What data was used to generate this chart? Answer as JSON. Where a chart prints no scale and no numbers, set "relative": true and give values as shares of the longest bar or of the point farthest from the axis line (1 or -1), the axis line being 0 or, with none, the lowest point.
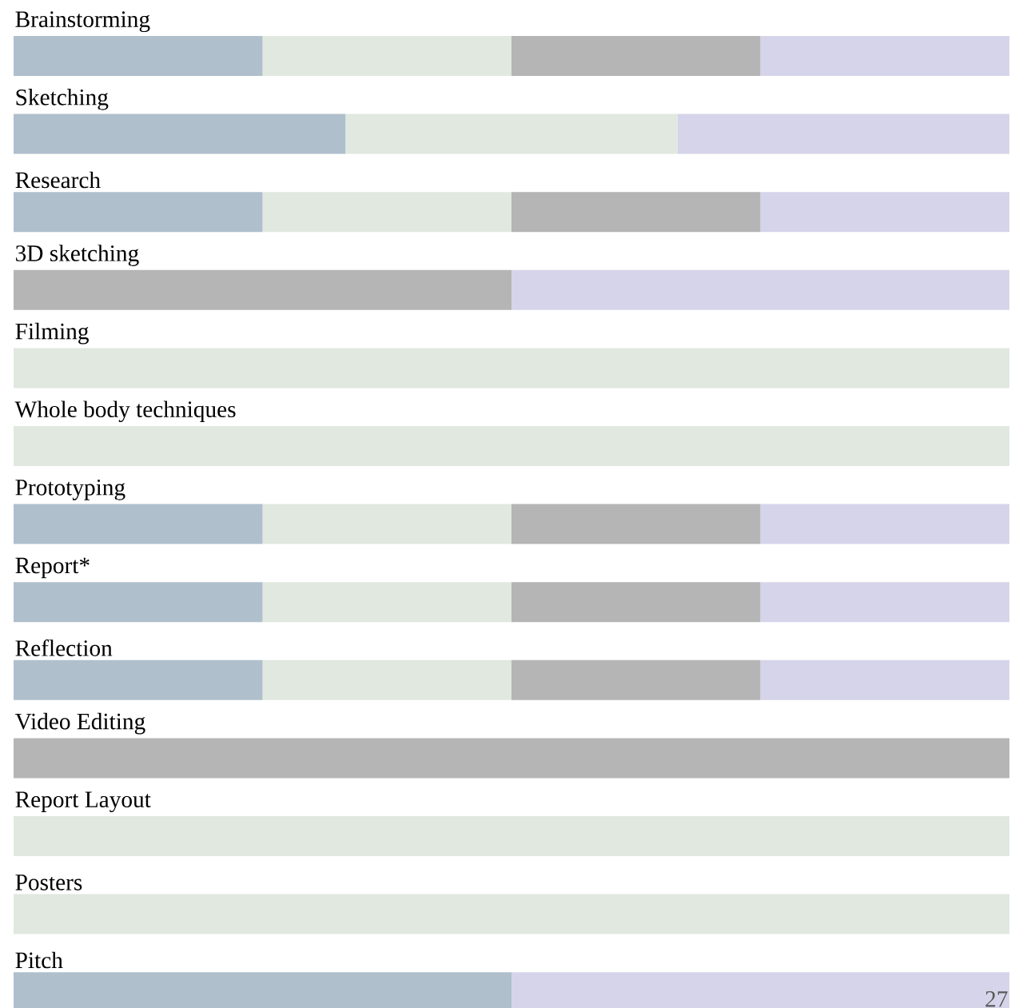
{
  "chart_data": {
    "type": "bar",
    "orientation": "horizontal",
    "stacked": true,
    "relative": true,
    "categories": [
      "Brainstorming",
      "Sketching",
      "Research",
      "3D sketching",
      "Filming",
      "Whole body techniques",
      "Prototyping",
      "Report*",
      "Reflection",
      "Video Editing",
      "Report Layout",
      "Posters",
      "Pitch"
    ],
    "series": [
      {
        "color": "#b0bfcc",
        "values": [
          0.25,
          0.3333,
          0.25,
          0,
          0,
          0,
          0.25,
          0.25,
          0.25,
          0,
          0,
          0,
          0.5
        ]
      },
      {
        "color": "#e0e8df",
        "values": [
          0.25,
          0.3333,
          0.25,
          0,
          1,
          1,
          0.25,
          0.25,
          0.25,
          0,
          1,
          1,
          0
        ]
      },
      {
        "color": "#b5b5b5",
        "values": [
          0.25,
          0,
          0.25,
          0.5,
          0,
          0,
          0.25,
          0.25,
          0.25,
          1,
          0,
          0,
          0
        ]
      },
      {
        "color": "#d6d4ea",
        "values": [
          0.25,
          0.3334,
          0.25,
          0.5,
          0,
          0,
          0.25,
          0.25,
          0.25,
          0,
          0,
          0,
          0.5
        ]
      }
    ],
    "annotations": [
      "27"
    ]
  }
}
